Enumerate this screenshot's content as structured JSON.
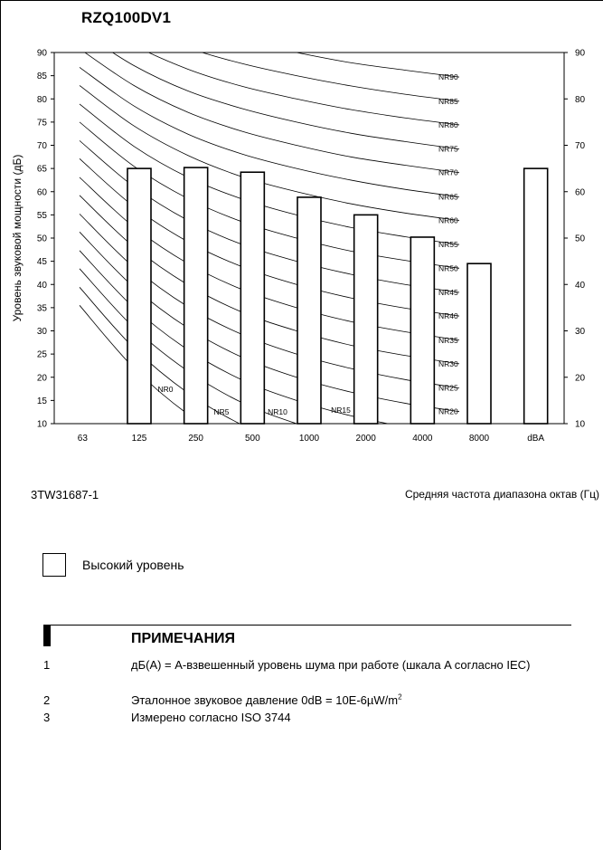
{
  "title": "RZQ100DV1",
  "doc_code": "3TW31687-1",
  "legend": {
    "label": "Высокий уровень"
  },
  "notes": {
    "heading": "ПРИМЕЧАНИЯ",
    "items": [
      {
        "num": "1",
        "text": "дБ(A) = A-взвешенный уровень шума при работе (шкала A согласно IEC)"
      },
      {
        "num": "2",
        "text_before": "Эталонное звуковое давление 0dB = 10E-6µW/m",
        "sup": "2"
      },
      {
        "num": "3",
        "text": "Измерено согласно ISO 3744"
      }
    ]
  },
  "chart_data": {
    "type": "bar",
    "categories": [
      "63",
      "125",
      "250",
      "500",
      "1000",
      "2000",
      "4000",
      "8000",
      "dBA"
    ],
    "values": [
      null,
      65,
      65.2,
      64.2,
      58.8,
      55,
      50.2,
      44.5,
      65
    ],
    "ylabel": "Уровень звуковой мощности (дБ)",
    "xlabel": "Средняя частота диапазона октав (Гц)",
    "ylim": [
      10,
      90
    ],
    "yticks_left": [
      10,
      15,
      20,
      25,
      30,
      35,
      40,
      45,
      50,
      55,
      60,
      65,
      70,
      75,
      80,
      85,
      90
    ],
    "yticks_right": [
      10,
      20,
      30,
      40,
      50,
      60,
      70,
      80,
      90
    ],
    "bar_color": "#ffffff",
    "nr_curves": [
      {
        "label": "NR0",
        "values": [
          35.5,
          22,
          12,
          4.8,
          0,
          -3.5,
          -6.1,
          -8
        ]
      },
      {
        "label": "NR5",
        "values": [
          39.4,
          26.3,
          16.6,
          9.7,
          5,
          1.6,
          -1,
          -2.8
        ]
      },
      {
        "label": "NR10",
        "values": [
          43.4,
          30.7,
          21.3,
          14.5,
          10,
          6.6,
          4.2,
          2.3
        ]
      },
      {
        "label": "NR15",
        "values": [
          47.3,
          35,
          25.9,
          19.4,
          15,
          11.7,
          9.3,
          7.4
        ]
      },
      {
        "label": "NR20",
        "values": [
          51.3,
          39.4,
          30.6,
          24.3,
          20,
          16.8,
          14.4,
          12.6
        ]
      },
      {
        "label": "NR25",
        "values": [
          55.2,
          43.7,
          35.2,
          29.2,
          25,
          21.9,
          19.5,
          17.7
        ]
      },
      {
        "label": "NR30",
        "values": [
          59.2,
          48.1,
          39.9,
          34,
          30,
          26.9,
          24.7,
          22.9
        ]
      },
      {
        "label": "NR35",
        "values": [
          63.1,
          52.4,
          44.5,
          38.9,
          35,
          32,
          29.8,
          28
        ]
      },
      {
        "label": "NR40",
        "values": [
          67.1,
          56.8,
          49.2,
          43.8,
          40,
          37.1,
          34.9,
          33.2
        ]
      },
      {
        "label": "NR45",
        "values": [
          71,
          61.1,
          53.8,
          48.6,
          45,
          42.2,
          40,
          38.3
        ]
      },
      {
        "label": "NR50",
        "values": [
          75,
          65.5,
          58.5,
          53.5,
          50,
          47.2,
          45.2,
          43.5
        ]
      },
      {
        "label": "NR55",
        "values": [
          78.9,
          69.8,
          63.1,
          58.4,
          55,
          52.3,
          50.3,
          48.6
        ]
      },
      {
        "label": "NR60",
        "values": [
          82.9,
          74.2,
          67.8,
          63.2,
          60,
          57.4,
          55.4,
          53.8
        ]
      },
      {
        "label": "NR65",
        "values": [
          86.8,
          78.5,
          72.4,
          68.1,
          65,
          62.5,
          60.5,
          58.9
        ]
      },
      {
        "label": "NR70",
        "values": [
          90.8,
          82.9,
          77.1,
          73,
          70,
          67.5,
          65.7,
          64.1
        ]
      },
      {
        "label": "NR75",
        "values": [
          94.7,
          87.2,
          81.7,
          77.9,
          75,
          72.6,
          70.8,
          69.2
        ]
      },
      {
        "label": "NR80",
        "values": [
          98.7,
          91.6,
          86.4,
          82.7,
          80,
          77.7,
          75.9,
          74.4
        ]
      },
      {
        "label": "NR85",
        "values": [
          102.6,
          95.9,
          91,
          87.6,
          85,
          82.8,
          81,
          79.5
        ]
      },
      {
        "label": "NR90",
        "values": [
          106.6,
          100.3,
          95.7,
          92.5,
          90,
          87.8,
          86.2,
          84.7
        ]
      }
    ]
  }
}
